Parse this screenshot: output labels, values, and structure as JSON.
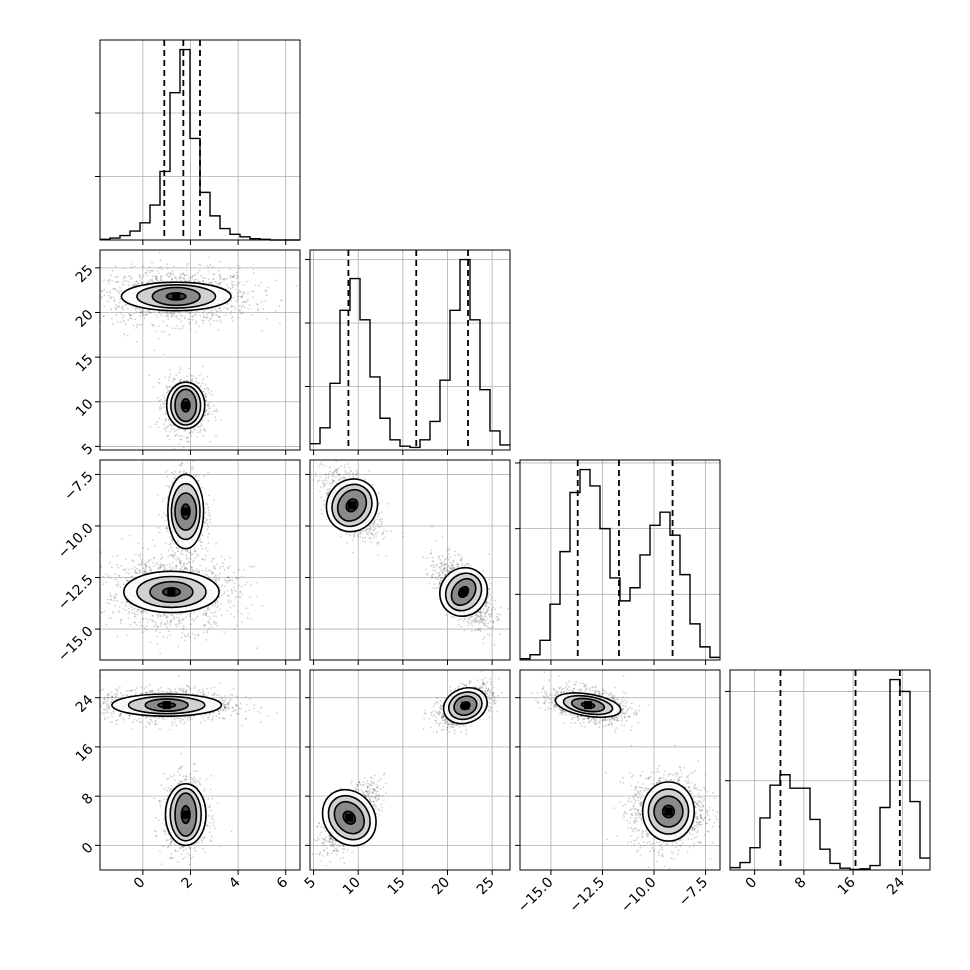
{
  "chart_data": {
    "type": "corner",
    "title": "",
    "parameters": [
      {
        "index": 0,
        "range": [
          -1.8,
          6.6
        ],
        "ticks": [
          0,
          2,
          4,
          6
        ],
        "tick_labels": [
          "0",
          "2",
          "4",
          "6"
        ],
        "quantiles": [
          0.9,
          1.7,
          2.4
        ]
      },
      {
        "index": 1,
        "range": [
          4.6,
          27.0
        ],
        "ticks": [
          5,
          10,
          15,
          20,
          25
        ],
        "tick_labels": [
          "5",
          "10",
          "15",
          "20",
          "25"
        ],
        "quantiles": [
          8.9,
          16.5,
          22.3
        ]
      },
      {
        "index": 2,
        "range": [
          -16.5,
          -6.8
        ],
        "ticks": [
          -15.0,
          -12.5,
          -10.0,
          -7.5
        ],
        "tick_labels": [
          "−15.0",
          "−12.5",
          "−10.0",
          "−7.5"
        ],
        "quantiles": [
          -13.7,
          -11.7,
          -9.1
        ]
      },
      {
        "index": 3,
        "range": [
          -4,
          28.5
        ],
        "ticks": [
          0,
          8,
          16,
          24
        ],
        "tick_labels": [
          "0",
          "8",
          "16",
          "24"
        ],
        "quantiles": [
          4.2,
          16.4,
          23.6
        ]
      }
    ],
    "histograms": [
      {
        "param": 0,
        "bin_edges": [
          -1.8,
          -1.38,
          -0.96,
          -0.54,
          -0.12,
          0.3,
          0.72,
          1.14,
          1.56,
          1.98,
          2.4,
          2.82,
          3.24,
          3.66,
          4.08,
          4.5,
          4.92,
          5.34,
          5.76,
          6.18,
          6.6
        ],
        "counts": [
          1,
          3,
          7,
          14,
          27,
          55,
          108,
          232,
          300,
          160,
          75,
          38,
          18,
          9,
          5,
          2,
          1,
          0,
          0,
          0
        ],
        "y_ticks": [
          100,
          200
        ]
      },
      {
        "param": 1,
        "bin_edges": [
          4.6,
          5.72,
          6.84,
          7.96,
          9.08,
          10.2,
          11.32,
          12.44,
          13.56,
          14.68,
          15.8,
          16.92,
          18.04,
          19.16,
          20.28,
          21.4,
          22.52,
          23.64,
          24.76,
          25.88,
          27.0
        ],
        "counts": [
          10,
          35,
          105,
          220,
          270,
          205,
          115,
          50,
          16,
          6,
          4,
          16,
          45,
          110,
          220,
          300,
          205,
          95,
          30,
          8
        ],
        "y_ticks": [
          100,
          200,
          300
        ]
      },
      {
        "param": 2,
        "bin_edges": [
          -16.5,
          -16.015,
          -15.53,
          -15.045,
          -14.56,
          -14.075,
          -13.59,
          -13.105,
          -12.62,
          -12.135,
          -11.65,
          -11.165,
          -10.68,
          -10.195,
          -9.71,
          -9.225,
          -8.74,
          -8.255,
          -7.77,
          -7.285,
          -6.8
        ],
        "counts": [
          2,
          8,
          30,
          85,
          165,
          255,
          290,
          265,
          200,
          125,
          90,
          110,
          160,
          205,
          225,
          190,
          130,
          55,
          20,
          4
        ],
        "y_ticks": [
          100,
          200,
          300
        ]
      },
      {
        "param": 3,
        "bin_edges": [
          -4.0,
          -2.375,
          -0.75,
          0.875,
          2.5,
          4.125,
          5.75,
          7.375,
          9.0,
          10.625,
          12.25,
          13.875,
          15.5,
          17.125,
          18.75,
          20.375,
          22.0,
          23.625,
          25.25,
          26.875,
          28.5
        ],
        "counts": [
          8,
          25,
          75,
          175,
          285,
          320,
          275,
          275,
          170,
          70,
          22,
          6,
          2,
          4,
          15,
          210,
          640,
          600,
          230,
          40
        ],
        "y_ticks": [
          300,
          600
        ]
      }
    ],
    "panels_2d": [
      {
        "x": 0,
        "y": 1,
        "peaks": [
          [
            1.4,
            21.8
          ],
          [
            1.8,
            9.6
          ]
        ]
      },
      {
        "x": 0,
        "y": 2,
        "peaks": [
          [
            1.8,
            -9.3
          ],
          [
            1.2,
            -13.2
          ]
        ]
      },
      {
        "x": 1,
        "y": 2,
        "peaks": [
          [
            9.3,
            -9.0
          ],
          [
            21.8,
            -13.2
          ]
        ]
      },
      {
        "x": 0,
        "y": 3,
        "peaks": [
          [
            1.0,
            22.8
          ],
          [
            1.8,
            5.0
          ]
        ]
      },
      {
        "x": 1,
        "y": 3,
        "peaks": [
          [
            9.0,
            4.5
          ],
          [
            22.0,
            22.7
          ]
        ]
      },
      {
        "x": 2,
        "y": 3,
        "peaks": [
          [
            -13.2,
            22.8
          ],
          [
            -9.3,
            5.5
          ]
        ]
      }
    ]
  }
}
